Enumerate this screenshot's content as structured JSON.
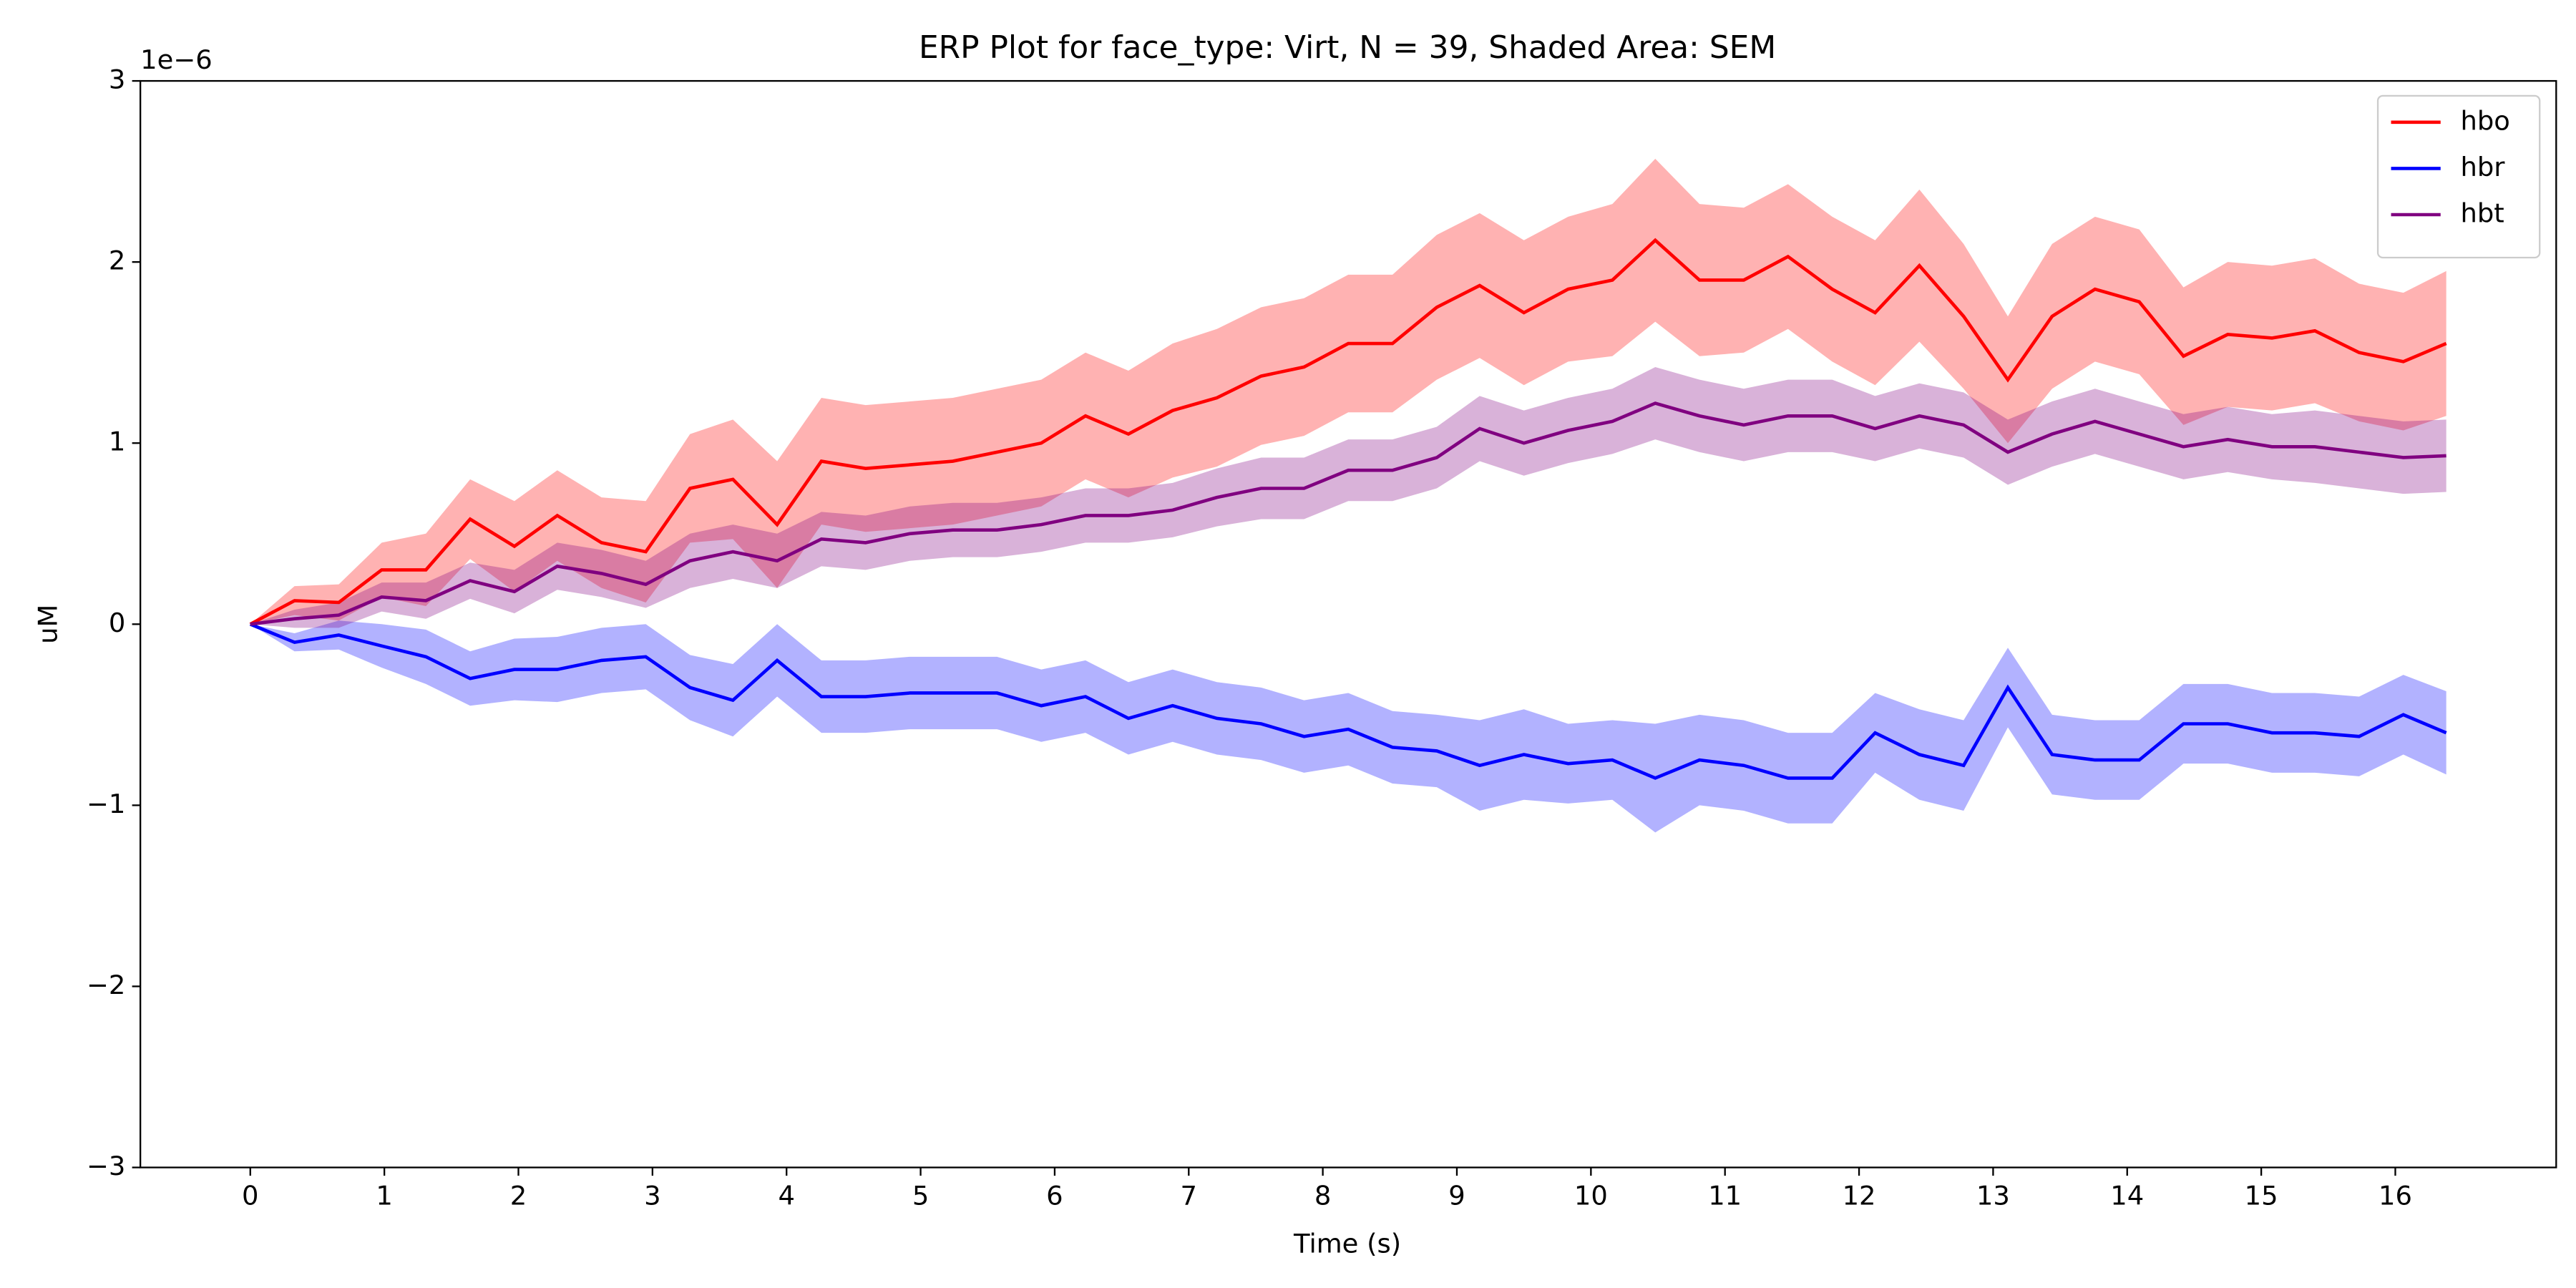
{
  "chart_data": {
    "type": "line",
    "title": "ERP Plot for face_type: Virt, N = 39, Shaded Area: SEM",
    "x_label": "Time (s)",
    "y_label": "uM",
    "y_offset_label": "1e−6",
    "x": [
      0,
      0.33,
      0.66,
      0.98,
      1.31,
      1.64,
      1.97,
      2.29,
      2.62,
      2.95,
      3.28,
      3.6,
      3.93,
      4.26,
      4.59,
      4.92,
      5.24,
      5.57,
      5.9,
      6.23,
      6.55,
      6.88,
      7.21,
      7.54,
      7.86,
      8.19,
      8.52,
      8.85,
      9.17,
      9.5,
      9.83,
      10.16,
      10.48,
      10.81,
      11.14,
      11.47,
      11.8,
      12.12,
      12.45,
      12.78,
      13.11,
      13.44,
      13.76,
      14.09,
      14.42,
      14.75,
      15.08,
      15.4,
      15.73,
      16.06,
      16.38
    ],
    "series": [
      {
        "name": "hbo",
        "color": "#ff0000",
        "values": [
          0,
          0.13,
          0.12,
          0.3,
          0.3,
          0.58,
          0.43,
          0.6,
          0.45,
          0.4,
          0.75,
          0.8,
          0.55,
          0.9,
          0.86,
          0.88,
          0.9,
          0.95,
          1.0,
          1.15,
          1.05,
          1.18,
          1.25,
          1.37,
          1.42,
          1.55,
          1.55,
          1.75,
          1.87,
          1.72,
          1.85,
          1.9,
          2.12,
          1.9,
          1.9,
          2.03,
          1.85,
          1.72,
          1.98,
          1.7,
          1.35,
          1.7,
          1.85,
          1.78,
          1.48,
          1.6,
          1.58,
          1.62,
          1.5,
          1.45,
          1.55
        ],
        "sem": [
          0,
          0.08,
          0.1,
          0.15,
          0.2,
          0.22,
          0.25,
          0.25,
          0.25,
          0.28,
          0.3,
          0.33,
          0.35,
          0.35,
          0.35,
          0.35,
          0.35,
          0.35,
          0.35,
          0.35,
          0.35,
          0.37,
          0.38,
          0.38,
          0.38,
          0.38,
          0.38,
          0.4,
          0.4,
          0.4,
          0.4,
          0.42,
          0.45,
          0.42,
          0.4,
          0.4,
          0.4,
          0.4,
          0.42,
          0.4,
          0.35,
          0.4,
          0.4,
          0.4,
          0.38,
          0.4,
          0.4,
          0.4,
          0.38,
          0.38,
          0.4
        ]
      },
      {
        "name": "hbr",
        "color": "#0000ff",
        "values": [
          0,
          -0.1,
          -0.06,
          -0.12,
          -0.18,
          -0.3,
          -0.25,
          -0.25,
          -0.2,
          -0.18,
          -0.35,
          -0.42,
          -0.2,
          -0.4,
          -0.4,
          -0.38,
          -0.38,
          -0.38,
          -0.45,
          -0.4,
          -0.52,
          -0.45,
          -0.52,
          -0.55,
          -0.62,
          -0.58,
          -0.68,
          -0.7,
          -0.78,
          -0.72,
          -0.77,
          -0.75,
          -0.85,
          -0.75,
          -0.78,
          -0.85,
          -0.85,
          -0.6,
          -0.72,
          -0.78,
          -0.35,
          -0.72,
          -0.75,
          -0.75,
          -0.55,
          -0.55,
          -0.6,
          -0.6,
          -0.62,
          -0.5,
          -0.6
        ],
        "sem": [
          0,
          0.05,
          0.08,
          0.12,
          0.15,
          0.15,
          0.17,
          0.18,
          0.18,
          0.18,
          0.18,
          0.2,
          0.2,
          0.2,
          0.2,
          0.2,
          0.2,
          0.2,
          0.2,
          0.2,
          0.2,
          0.2,
          0.2,
          0.2,
          0.2,
          0.2,
          0.2,
          0.2,
          0.25,
          0.25,
          0.22,
          0.22,
          0.3,
          0.25,
          0.25,
          0.25,
          0.25,
          0.22,
          0.25,
          0.25,
          0.22,
          0.22,
          0.22,
          0.22,
          0.22,
          0.22,
          0.22,
          0.22,
          0.22,
          0.22,
          0.23
        ]
      },
      {
        "name": "hbt",
        "color": "#800080",
        "values": [
          0,
          0.03,
          0.05,
          0.15,
          0.13,
          0.24,
          0.18,
          0.32,
          0.28,
          0.22,
          0.35,
          0.4,
          0.35,
          0.47,
          0.45,
          0.5,
          0.52,
          0.52,
          0.55,
          0.6,
          0.6,
          0.63,
          0.7,
          0.75,
          0.75,
          0.85,
          0.85,
          0.92,
          1.08,
          1.0,
          1.07,
          1.12,
          1.22,
          1.15,
          1.1,
          1.15,
          1.15,
          1.08,
          1.15,
          1.1,
          0.95,
          1.05,
          1.12,
          1.05,
          0.98,
          1.02,
          0.98,
          0.98,
          0.95,
          0.92,
          0.93
        ],
        "sem": [
          0,
          0.05,
          0.07,
          0.08,
          0.1,
          0.1,
          0.12,
          0.13,
          0.13,
          0.13,
          0.15,
          0.15,
          0.15,
          0.15,
          0.15,
          0.15,
          0.15,
          0.15,
          0.15,
          0.15,
          0.15,
          0.15,
          0.16,
          0.17,
          0.17,
          0.17,
          0.17,
          0.17,
          0.18,
          0.18,
          0.18,
          0.18,
          0.2,
          0.2,
          0.2,
          0.2,
          0.2,
          0.18,
          0.18,
          0.18,
          0.18,
          0.18,
          0.18,
          0.18,
          0.18,
          0.18,
          0.18,
          0.2,
          0.2,
          0.2,
          0.2
        ]
      }
    ],
    "xlim": [
      -0.82,
      17.2
    ],
    "xticks": [
      0,
      1,
      2,
      3,
      4,
      5,
      6,
      7,
      8,
      9,
      10,
      11,
      12,
      13,
      14,
      15,
      16
    ],
    "ylim": [
      -3,
      3
    ],
    "yticks": [
      {
        "value": -3,
        "label": "−3"
      },
      {
        "value": -2,
        "label": "−2"
      },
      {
        "value": -1,
        "label": "−1"
      },
      0,
      1,
      2,
      3
    ],
    "legend": "upper right",
    "band_opacity": 0.3
  }
}
